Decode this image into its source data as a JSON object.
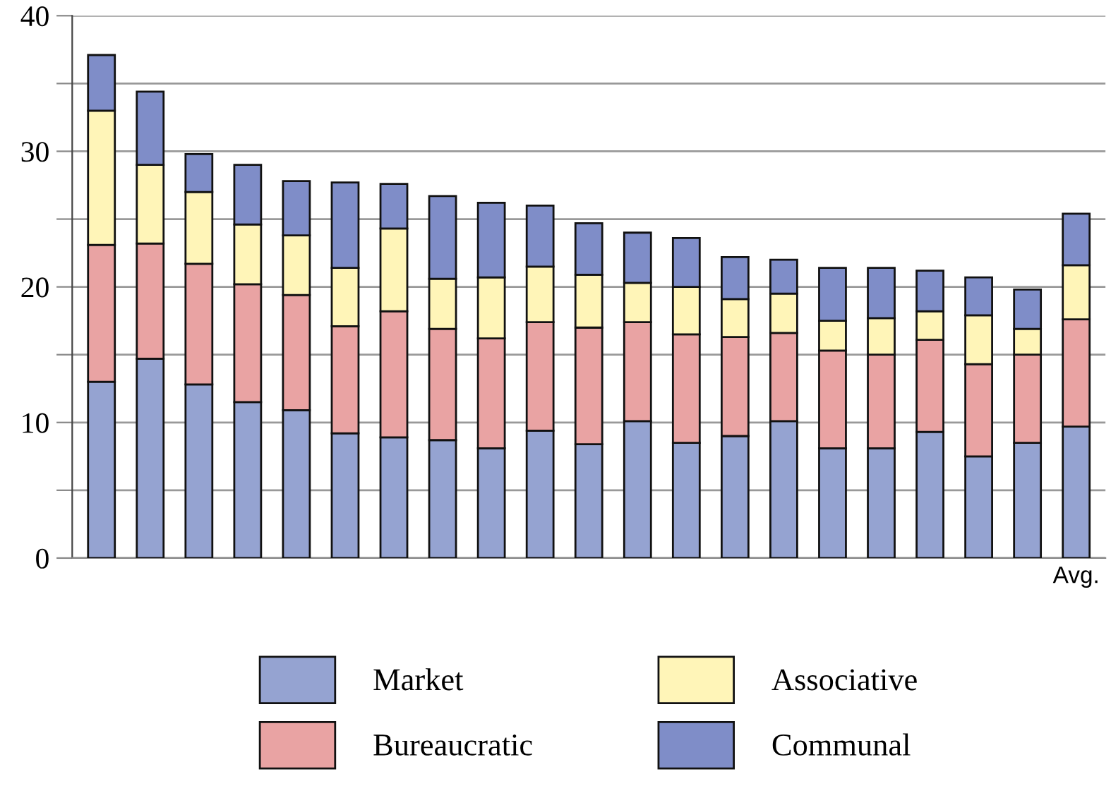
{
  "chart_data": {
    "type": "bar",
    "stacked": true,
    "categories": [
      null,
      null,
      null,
      null,
      null,
      null,
      null,
      null,
      null,
      null,
      null,
      null,
      null,
      null,
      null,
      null,
      null,
      null,
      null,
      null,
      "Avg."
    ],
    "series": [
      {
        "name": "Market",
        "color": "#95a3d1",
        "values": [
          13.0,
          14.7,
          12.8,
          11.5,
          10.9,
          9.2,
          8.9,
          8.7,
          8.1,
          9.4,
          8.4,
          10.1,
          8.5,
          9.0,
          10.1,
          8.1,
          8.1,
          9.3,
          7.5,
          8.5,
          9.7
        ]
      },
      {
        "name": "Bureaucratic",
        "color": "#e9a3a3",
        "values": [
          10.1,
          8.5,
          8.9,
          8.7,
          8.5,
          7.9,
          9.3,
          8.2,
          8.1,
          8.0,
          8.6,
          7.3,
          8.0,
          7.3,
          6.5,
          7.2,
          6.9,
          6.8,
          6.8,
          6.5,
          7.9
        ]
      },
      {
        "name": "Associative",
        "color": "#fff5b8",
        "values": [
          9.9,
          5.8,
          5.3,
          4.4,
          4.4,
          4.3,
          6.1,
          3.7,
          4.5,
          4.1,
          3.9,
          2.9,
          3.5,
          2.8,
          2.9,
          2.2,
          2.7,
          2.1,
          3.6,
          1.9,
          4.0
        ]
      },
      {
        "name": "Communal",
        "color": "#7f8dc8",
        "values": [
          4.1,
          5.4,
          2.8,
          4.4,
          4.0,
          6.3,
          3.3,
          6.1,
          5.5,
          4.5,
          3.8,
          3.7,
          3.6,
          3.1,
          2.5,
          3.9,
          3.7,
          3.0,
          2.8,
          2.9,
          3.8
        ]
      }
    ],
    "ylim": [
      0,
      40
    ],
    "yticks": [
      0,
      {
        "value": 5,
        "label": null
      },
      10,
      {
        "value": 15,
        "label": null
      },
      20,
      {
        "value": 25,
        "label": null
      },
      30,
      {
        "value": 35,
        "label": null
      },
      40
    ],
    "grid": "y",
    "legend": "bottom"
  }
}
